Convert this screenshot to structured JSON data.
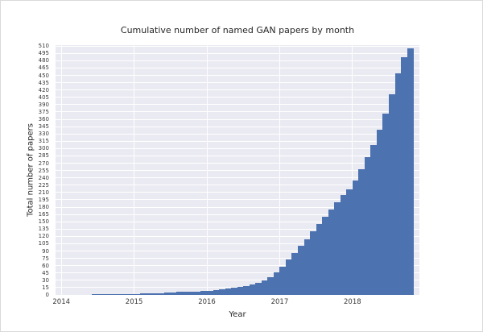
{
  "chart_data": {
    "type": "bar",
    "title": "Cumulative number of named GAN papers by month",
    "xlabel": "Year",
    "ylabel": "Total number of papers",
    "ylim": [
      0,
      512
    ],
    "xlim": [
      2013.92,
      2018.92
    ],
    "grid": true,
    "legend": "none",
    "plot_bg": "#eaeaf2",
    "bar_color": "#4c72b0",
    "yticks": [
      0,
      15,
      30,
      45,
      60,
      75,
      90,
      105,
      120,
      135,
      150,
      165,
      180,
      195,
      210,
      225,
      240,
      255,
      270,
      285,
      300,
      315,
      330,
      345,
      360,
      375,
      390,
      405,
      420,
      435,
      450,
      465,
      480,
      495,
      510
    ],
    "xticks": [
      "2014",
      "2015",
      "2016",
      "2017",
      "2018"
    ],
    "months": [
      "2014-06",
      "2014-07",
      "2014-08",
      "2014-09",
      "2014-10",
      "2014-11",
      "2014-12",
      "2015-01",
      "2015-02",
      "2015-03",
      "2015-04",
      "2015-05",
      "2015-06",
      "2015-07",
      "2015-08",
      "2015-09",
      "2015-10",
      "2015-11",
      "2015-12",
      "2016-01",
      "2016-02",
      "2016-03",
      "2016-04",
      "2016-05",
      "2016-06",
      "2016-07",
      "2016-08",
      "2016-09",
      "2016-10",
      "2016-11",
      "2016-12",
      "2017-01",
      "2017-02",
      "2017-03",
      "2017-04",
      "2017-05",
      "2017-06",
      "2017-07",
      "2017-08",
      "2017-09",
      "2017-10",
      "2017-11",
      "2017-12",
      "2018-01",
      "2018-02",
      "2018-03",
      "2018-04",
      "2018-05",
      "2018-06",
      "2018-07",
      "2018-08",
      "2018-09",
      "2018-10"
    ],
    "values": [
      1,
      1,
      1,
      2,
      2,
      2,
      2,
      2,
      3,
      3,
      4,
      4,
      5,
      5,
      6,
      6,
      7,
      7,
      8,
      9,
      10,
      12,
      13,
      15,
      17,
      19,
      22,
      25,
      29,
      37,
      47,
      58,
      72,
      86,
      100,
      114,
      130,
      145,
      160,
      175,
      190,
      204,
      216,
      235,
      258,
      282,
      308,
      338,
      372,
      412,
      455,
      488,
      505
    ]
  }
}
